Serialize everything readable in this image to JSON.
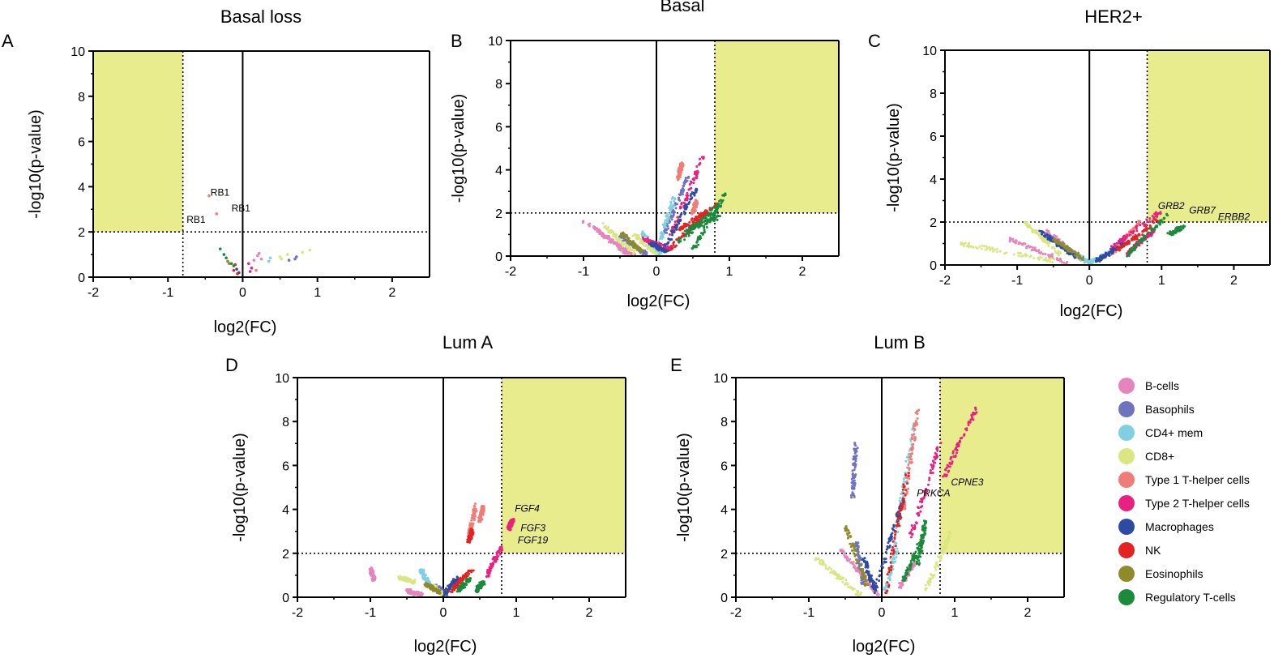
{
  "figure": {
    "legend": [
      {
        "label": "B-cells",
        "color": "#e584bd"
      },
      {
        "label": "Basophils",
        "color": "#6e73be"
      },
      {
        "label": "CD4+ mem",
        "color": "#80d0e2"
      },
      {
        "label": "CD8+",
        "color": "#d9e682"
      },
      {
        "label": "Type 1 T-helper cells",
        "color": "#f07c78"
      },
      {
        "label": "Type 2 T-helper cells",
        "color": "#e8207f"
      },
      {
        "label": "Macrophages",
        "color": "#2e4aa3"
      },
      {
        "label": "NK",
        "color": "#e52222"
      },
      {
        "label": "Eosinophils",
        "color": "#8f8a2a"
      },
      {
        "label": "Regulatory T-cells",
        "color": "#1b8a3a"
      }
    ]
  },
  "chart_data": [
    {
      "type": "scatter",
      "panel": "A",
      "title": "Basal loss",
      "xlabel": "log2(FC)",
      "ylabel": "-log10(p-value)",
      "xlim": [
        -2,
        2.5
      ],
      "ylim": [
        0,
        10
      ],
      "x_ticks": [
        -2,
        -1,
        0,
        1,
        2
      ],
      "y_ticks": [
        0,
        2,
        4,
        6,
        8,
        10
      ],
      "thresholds": {
        "x": -0.8,
        "y": 2
      },
      "highlight": {
        "x": [
          -2,
          -0.8
        ],
        "y": [
          2,
          10
        ]
      },
      "annotations": [
        {
          "text": "RB1",
          "x": -0.43,
          "y": 3.6,
          "italic": false
        },
        {
          "text": "RB1",
          "x": -0.15,
          "y": 2.9,
          "italic": false
        },
        {
          "text": "RB1",
          "x": -0.75,
          "y": 2.4,
          "italic": false
        }
      ],
      "series": [
        {
          "name": "B-cells",
          "points": [
            [
              0.15,
              0.75
            ],
            [
              0.2,
              0.95
            ],
            [
              0.22,
              1.05
            ],
            [
              0.25,
              0.8
            ]
          ]
        },
        {
          "name": "Basophils",
          "points": [
            [
              0.7,
              0.8
            ],
            [
              0.72,
              0.9
            ],
            [
              0.62,
              0.75
            ]
          ]
        },
        {
          "name": "CD4+ mem",
          "points": [
            [
              0.35,
              0.7
            ],
            [
              0.37,
              0.85
            ]
          ]
        },
        {
          "name": "CD8+",
          "points": [
            [
              0.5,
              0.9
            ],
            [
              0.6,
              1.0
            ],
            [
              0.8,
              1.1
            ],
            [
              0.9,
              1.2
            ],
            [
              0.52,
              0.8
            ]
          ]
        },
        {
          "name": "Type 1 T-helper cells",
          "points": [
            [
              -0.45,
              3.6
            ],
            [
              -0.35,
              2.8
            ],
            [
              0.18,
              0.3
            ]
          ]
        },
        {
          "name": "Type 2 T-helper cells",
          "points": [
            [
              0.1,
              0.25
            ],
            [
              0.12,
              0.4
            ],
            [
              0.08,
              0.6
            ]
          ]
        },
        {
          "name": "Macrophages",
          "points": [
            [
              -0.05,
              0.2
            ],
            [
              -0.08,
              0.35
            ]
          ]
        },
        {
          "name": "NK",
          "points": [
            [
              -0.12,
              0.3
            ],
            [
              -0.1,
              0.55
            ],
            [
              -0.07,
              0.15
            ]
          ]
        },
        {
          "name": "Eosinophils",
          "points": [
            [
              -0.2,
              0.7
            ],
            [
              -0.18,
              0.6
            ]
          ]
        },
        {
          "name": "Regulatory T-cells",
          "points": [
            [
              -0.3,
              1.25
            ],
            [
              -0.25,
              1.0
            ],
            [
              -0.22,
              0.85
            ],
            [
              -0.15,
              0.6
            ],
            [
              -0.12,
              0.5
            ]
          ]
        }
      ]
    },
    {
      "type": "scatter",
      "panel": "B",
      "title": "Basal",
      "xlabel": "log2(FC)",
      "ylabel": "-log10(p-value)",
      "xlim": [
        -2,
        2.5
      ],
      "ylim": [
        0,
        10
      ],
      "x_ticks": [
        -2,
        -1,
        0,
        1,
        2
      ],
      "y_ticks": [
        0,
        2,
        4,
        6,
        8,
        10
      ],
      "thresholds": {
        "x": 0.8,
        "y": 2
      },
      "highlight": {
        "x": [
          0.8,
          2.5
        ],
        "y": [
          2,
          10
        ]
      },
      "annotations": [],
      "series": [
        {
          "name": "B-cells",
          "segments": [
            [
              -1.0,
              1.6,
              -0.3,
              0.05
            ],
            [
              -0.8,
              1.2,
              -0.4,
              0.1
            ]
          ]
        },
        {
          "name": "Basophils",
          "segments": [
            [
              -0.5,
              0.9,
              -0.15,
              0.1
            ],
            [
              0.1,
              1.0,
              0.45,
              3.8
            ]
          ]
        },
        {
          "name": "CD4+ mem",
          "segments": [
            [
              -0.2,
              1.1,
              0.05,
              0.1
            ],
            [
              0.0,
              0.2,
              0.25,
              2.8
            ]
          ]
        },
        {
          "name": "CD8+",
          "segments": [
            [
              -0.75,
              1.5,
              -0.3,
              0.1
            ],
            [
              -0.3,
              1.0,
              0.0,
              0.1
            ]
          ]
        },
        {
          "name": "Type 1 T-helper cells",
          "segments": [
            [
              0.3,
              3.6,
              0.35,
              4.3
            ],
            [
              0.5,
              2.0,
              0.55,
              2.6
            ]
          ]
        },
        {
          "name": "Type 2 T-helper cells",
          "segments": [
            [
              0.2,
              1.0,
              0.65,
              4.7
            ],
            [
              -0.2,
              0.8,
              0.2,
              0.3
            ]
          ]
        },
        {
          "name": "Macrophages",
          "segments": [
            [
              0.1,
              0.3,
              0.55,
              3.2
            ],
            [
              -0.1,
              0.6,
              0.15,
              0.2
            ]
          ]
        },
        {
          "name": "NK",
          "segments": [
            [
              0.2,
              0.4,
              0.75,
              2.2
            ],
            [
              0.3,
              1.2,
              0.85,
              2.4
            ]
          ]
        },
        {
          "name": "Eosinophils",
          "segments": [
            [
              -0.5,
              1.1,
              -0.2,
              0.2
            ]
          ]
        },
        {
          "name": "Regulatory T-cells",
          "segments": [
            [
              0.3,
              0.6,
              0.9,
              2.5
            ],
            [
              0.5,
              0.3,
              0.95,
              2.9
            ],
            [
              0.4,
              1.2,
              0.85,
              1.8
            ]
          ]
        }
      ]
    },
    {
      "type": "scatter",
      "panel": "C",
      "title": "HER2+",
      "xlabel": "log2(FC)",
      "ylabel": "-log10(p-value)",
      "xlim": [
        -2,
        2.5
      ],
      "ylim": [
        0,
        10
      ],
      "x_ticks": [
        -2,
        -1,
        0,
        1,
        2
      ],
      "y_ticks": [
        0,
        2,
        4,
        6,
        8,
        10
      ],
      "thresholds": {
        "x": 0.8,
        "y": 2
      },
      "highlight": {
        "x": [
          0.8,
          2.5
        ],
        "y": [
          2,
          10
        ]
      },
      "annotations": [
        {
          "text": "GRB2",
          "x": 0.95,
          "y": 2.6,
          "italic": true
        },
        {
          "text": "GRB7",
          "x": 1.38,
          "y": 2.4,
          "italic": true
        },
        {
          "text": "ERBB2",
          "x": 1.78,
          "y": 2.1,
          "italic": true
        }
      ],
      "series": [
        {
          "name": "B-cells",
          "segments": [
            [
              -1.1,
              1.2,
              -0.3,
              0.1
            ],
            [
              -0.6,
              1.6,
              -0.1,
              0.2
            ]
          ]
        },
        {
          "name": "Basophils",
          "segments": [
            [
              -0.6,
              1.4,
              -0.1,
              0.3
            ]
          ]
        },
        {
          "name": "CD4+ mem",
          "segments": [
            [
              -0.5,
              1.1,
              0.0,
              0.1
            ],
            [
              0.0,
              0.1,
              0.3,
              0.6
            ]
          ]
        },
        {
          "name": "CD8+",
          "segments": [
            [
              -1.8,
              1.0,
              -0.5,
              0.2
            ],
            [
              -0.9,
              2.0,
              -0.4,
              0.5
            ]
          ]
        },
        {
          "name": "Type 1 T-helper cells",
          "segments": [
            [
              0.3,
              0.5,
              0.7,
              2.0
            ]
          ]
        },
        {
          "name": "Type 2 T-helper cells",
          "segments": [
            [
              0.3,
              0.8,
              1.0,
              2.5
            ],
            [
              0.5,
              0.5,
              0.9,
              1.6
            ]
          ]
        },
        {
          "name": "Macrophages",
          "segments": [
            [
              -0.7,
              1.6,
              -0.2,
              0.4
            ],
            [
              0.1,
              0.2,
              0.5,
              1.0
            ]
          ]
        },
        {
          "name": "NK",
          "segments": [
            [
              0.4,
              0.7,
              0.95,
              2.1
            ]
          ]
        },
        {
          "name": "Eosinophils",
          "segments": [
            [
              -0.5,
              1.2,
              -0.1,
              0.3
            ]
          ]
        },
        {
          "name": "Regulatory T-cells",
          "segments": [
            [
              0.5,
              0.4,
              1.1,
              2.4
            ],
            [
              1.1,
              1.4,
              1.3,
              1.8
            ]
          ]
        }
      ]
    },
    {
      "type": "scatter",
      "panel": "D",
      "title": "Lum A",
      "xlabel": "log2(FC)",
      "ylabel": "-log10(p-value)",
      "xlim": [
        -2,
        2.5
      ],
      "ylim": [
        0,
        10
      ],
      "x_ticks": [
        -2,
        -1,
        0,
        1,
        2
      ],
      "y_ticks": [
        0,
        2,
        4,
        6,
        8,
        10
      ],
      "thresholds": {
        "x": 0.8,
        "y": 2
      },
      "highlight": {
        "x": [
          0.8,
          2.5
        ],
        "y": [
          2,
          10
        ]
      },
      "annotations": [
        {
          "text": "FGF4",
          "x": 0.98,
          "y": 3.9,
          "italic": true
        },
        {
          "text": "FGF3",
          "x": 1.06,
          "y": 3.0,
          "italic": true
        },
        {
          "text": "FGF19",
          "x": 1.02,
          "y": 2.45,
          "italic": true
        }
      ],
      "series": [
        {
          "name": "B-cells",
          "segments": [
            [
              -1.0,
              1.3,
              -0.95,
              0.8
            ],
            [
              -0.5,
              0.3,
              -0.3,
              0.1
            ]
          ]
        },
        {
          "name": "Basophils",
          "segments": [
            [
              -0.1,
              0.5,
              0.05,
              0.1
            ]
          ]
        },
        {
          "name": "CD4+ mem",
          "segments": [
            [
              -0.3,
              1.2,
              -0.2,
              0.6
            ]
          ]
        },
        {
          "name": "CD8+",
          "segments": [
            [
              -0.6,
              0.9,
              -0.4,
              0.7
            ],
            [
              -0.15,
              0.5,
              0.0,
              0.1
            ]
          ]
        },
        {
          "name": "Type 1 T-helper cells",
          "segments": [
            [
              0.35,
              2.8,
              0.45,
              4.2
            ],
            [
              0.5,
              3.5,
              0.55,
              4.1
            ]
          ]
        },
        {
          "name": "Type 2 T-helper cells",
          "segments": [
            [
              0.6,
              1.0,
              0.8,
              2.3
            ],
            [
              0.9,
              3.1,
              0.95,
              3.5
            ]
          ]
        },
        {
          "name": "Macrophages",
          "segments": [
            [
              0.0,
              0.1,
              0.2,
              0.9
            ]
          ]
        },
        {
          "name": "NK",
          "segments": [
            [
              0.1,
              0.3,
              0.4,
              1.3
            ],
            [
              0.35,
              2.5,
              0.4,
              3.1
            ]
          ]
        },
        {
          "name": "Eosinophils",
          "segments": [
            [
              -0.25,
              0.6,
              -0.05,
              0.2
            ]
          ]
        },
        {
          "name": "Regulatory T-cells",
          "segments": [
            [
              0.45,
              0.3,
              0.55,
              0.7
            ],
            [
              0.2,
              0.3,
              0.35,
              0.8
            ]
          ]
        }
      ]
    },
    {
      "type": "scatter",
      "panel": "E",
      "title": "Lum B",
      "xlabel": "log2(FC)",
      "ylabel": "-log10(p-value)",
      "xlim": [
        -2,
        2.5
      ],
      "ylim": [
        0,
        10
      ],
      "x_ticks": [
        -2,
        -1,
        0,
        1,
        2
      ],
      "y_ticks": [
        0,
        2,
        4,
        6,
        8,
        10
      ],
      "thresholds": {
        "x": 0.8,
        "y": 2
      },
      "highlight": {
        "x": [
          0.8,
          2.5
        ],
        "y": [
          2,
          10
        ]
      },
      "annotations": [
        {
          "text": "CPNE3",
          "x": 0.95,
          "y": 5.1,
          "italic": true
        },
        {
          "text": "PRKCA",
          "x": 0.48,
          "y": 4.6,
          "italic": true
        }
      ],
      "series": [
        {
          "name": "B-cells",
          "segments": [
            [
              -0.55,
              2.1,
              -0.05,
              0.1
            ],
            [
              0.25,
              0.5,
              0.45,
              1.6
            ]
          ]
        },
        {
          "name": "Basophils",
          "segments": [
            [
              -0.4,
              4.5,
              -0.35,
              7.1
            ],
            [
              -0.35,
              2.5,
              -0.25,
              0.6
            ]
          ]
        },
        {
          "name": "CD4+ mem",
          "segments": [
            [
              0.1,
              1.0,
              0.45,
              8.1
            ],
            [
              0.05,
              0.3,
              0.2,
              2.2
            ]
          ]
        },
        {
          "name": "CD8+",
          "segments": [
            [
              -0.9,
              1.8,
              -0.3,
              0.1
            ],
            [
              0.6,
              0.3,
              0.95,
              3.0
            ]
          ]
        },
        {
          "name": "Type 1 T-helper cells",
          "segments": [
            [
              0.3,
              4.0,
              0.5,
              8.7
            ]
          ]
        },
        {
          "name": "Type 2 T-helper cells",
          "segments": [
            [
              0.4,
              2.8,
              0.8,
              7.0
            ],
            [
              0.85,
              5.5,
              1.3,
              8.6
            ]
          ]
        },
        {
          "name": "Macrophages",
          "segments": [
            [
              -0.1,
              0.2,
              0.3,
              4.5
            ],
            [
              -0.25,
              1.8,
              -0.1,
              0.4
            ]
          ]
        },
        {
          "name": "NK",
          "segments": [
            [
              0.05,
              0.1,
              0.35,
              5.6
            ]
          ]
        },
        {
          "name": "Eosinophils",
          "segments": [
            [
              -0.5,
              3.2,
              -0.2,
              0.5
            ]
          ]
        },
        {
          "name": "Regulatory T-cells",
          "segments": [
            [
              0.3,
              0.8,
              0.6,
              3.0
            ],
            [
              0.5,
              1.5,
              0.6,
              3.5
            ]
          ]
        }
      ]
    }
  ]
}
